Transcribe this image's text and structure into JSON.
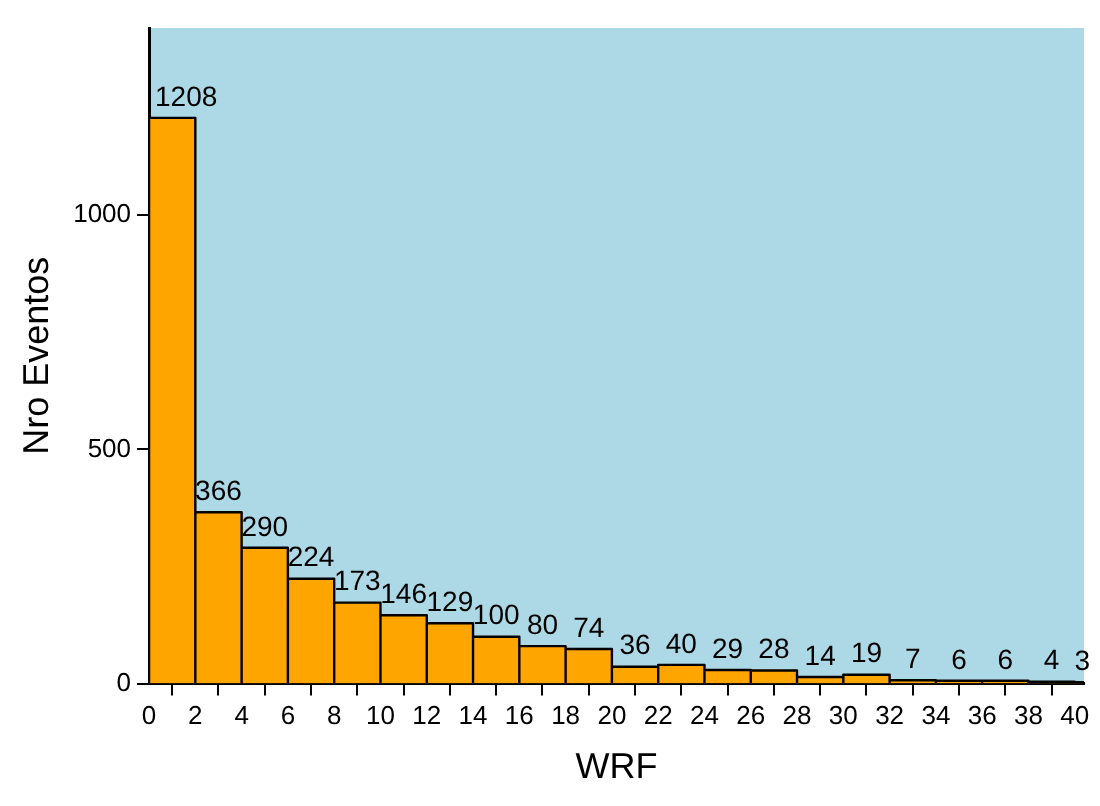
{
  "chart_data": {
    "type": "histogram",
    "xlabel": "WRF",
    "ylabel": "Nro Eventos",
    "bins": [
      0,
      2,
      4,
      6,
      8,
      10,
      12,
      14,
      16,
      18,
      20,
      22,
      24,
      26,
      28,
      30,
      32,
      34,
      36,
      38,
      40,
      42
    ],
    "values": [
      1208,
      366,
      290,
      224,
      173,
      146,
      129,
      100,
      80,
      74,
      36,
      40,
      29,
      28,
      14,
      19,
      7,
      6,
      6,
      4,
      3
    ],
    "color": "#ffa500",
    "xlim": [
      0,
      40.4
    ],
    "xticks": [
      0,
      2,
      4,
      6,
      8,
      10,
      12,
      14,
      16,
      18,
      20,
      22,
      24,
      26,
      28,
      30,
      32,
      34,
      36,
      38,
      40
    ],
    "ylim": [
      0,
      1400
    ],
    "yticks": [
      0,
      500,
      1000
    ],
    "grid": false,
    "legend": false,
    "data_labels": true
  }
}
